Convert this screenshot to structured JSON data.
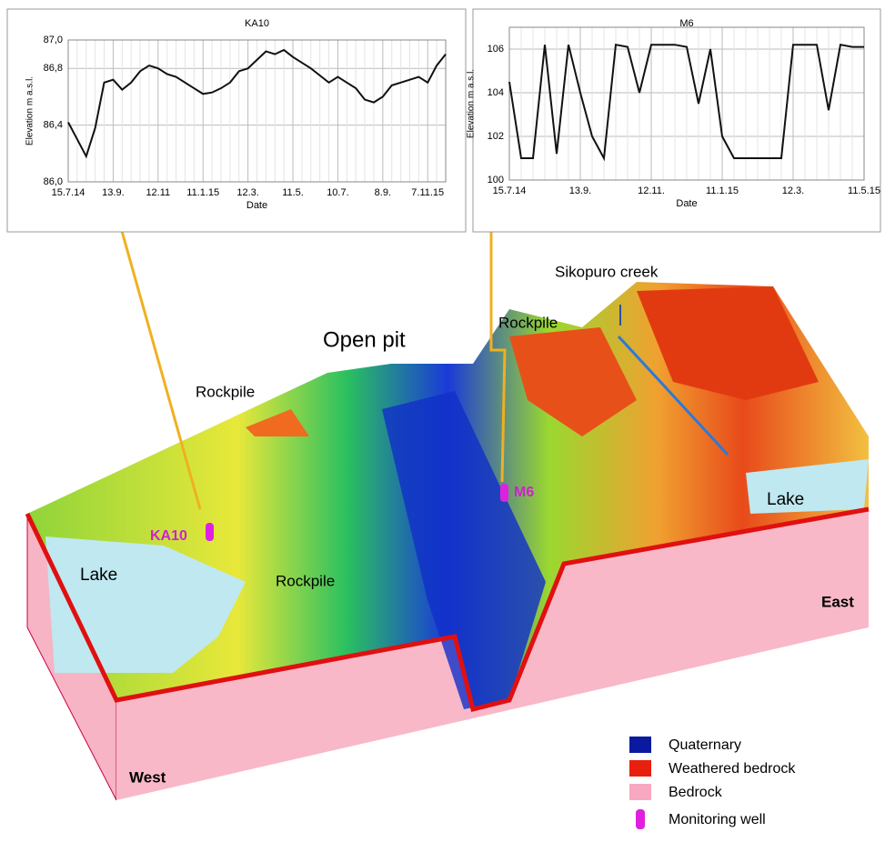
{
  "chart_data": [
    {
      "type": "line",
      "title": "KA10",
      "x_label": "Date",
      "y_label": "Elevation m a.s.l.",
      "categories": [
        "15.7.14",
        null,
        null,
        null,
        null,
        "13.9.",
        null,
        null,
        null,
        null,
        "12.11",
        null,
        null,
        null,
        null,
        "11.1.15",
        null,
        null,
        null,
        null,
        "12.3.",
        null,
        null,
        null,
        null,
        "11.5.",
        null,
        null,
        null,
        null,
        "10.7.",
        null,
        null,
        null,
        null,
        "8.9.",
        null,
        null,
        null,
        null,
        "7.11.15",
        null,
        null
      ],
      "series": [
        {
          "name": "KA10",
          "color": "#111111",
          "values": [
            86.42,
            86.3,
            86.18,
            86.38,
            86.7,
            86.72,
            86.65,
            86.7,
            86.78,
            86.82,
            86.8,
            86.76,
            86.74,
            86.7,
            86.66,
            86.62,
            86.63,
            86.66,
            86.7,
            86.78,
            86.8,
            86.86,
            86.92,
            86.9,
            86.93,
            86.88,
            86.84,
            86.8,
            86.75,
            86.7,
            86.74,
            86.7,
            86.66,
            86.58,
            86.56,
            86.6,
            86.68,
            86.7,
            86.72,
            86.74,
            86.7,
            86.82,
            86.9
          ]
        }
      ],
      "ylim": [
        86.0,
        87.0
      ],
      "yticks": [
        {
          "value": 86.0,
          "label": "86,0"
        },
        {
          "value": 86.4,
          "label": "86,4"
        },
        {
          "value": 86.8,
          "label": "86,8"
        },
        {
          "value": 87.0,
          "label": "87,0"
        }
      ],
      "grid": true
    },
    {
      "type": "line",
      "title": "M6",
      "x_label": "Date",
      "y_label": "Elevation m a.s.l.",
      "categories": [
        "15.7.14",
        null,
        null,
        null,
        null,
        null,
        "13.9.",
        null,
        null,
        null,
        null,
        null,
        "12.11.",
        null,
        null,
        null,
        null,
        null,
        "11.1.15",
        null,
        null,
        null,
        null,
        null,
        "12.3.",
        null,
        null,
        null,
        null,
        null,
        "11.5.15"
      ],
      "series": [
        {
          "name": "M6",
          "color": "#111111",
          "values": [
            104.5,
            101.0,
            101.0,
            106.2,
            101.2,
            106.2,
            104.0,
            102.0,
            101.0,
            106.2,
            106.1,
            104.0,
            106.2,
            106.2,
            106.2,
            106.1,
            103.5,
            106.0,
            102.0,
            101.0,
            101.0,
            101.0,
            101.0,
            101.0,
            106.2,
            106.2,
            106.2,
            103.2,
            106.2,
            106.1,
            106.1
          ]
        }
      ],
      "ylim": [
        100,
        107
      ],
      "yticks": [
        100,
        102,
        104,
        106
      ],
      "grid": true
    }
  ],
  "diagram": {
    "labels": [
      "Sikopuro creek",
      "Open pit",
      "Rockpile",
      "Rockpile",
      "Rockpile",
      "Lake",
      "Lake",
      "KA10",
      "M6",
      "East",
      "West"
    ],
    "legend": [
      "Quaternary",
      "Weathered bedrock",
      "Bedrock",
      "Monitoring well"
    ]
  }
}
